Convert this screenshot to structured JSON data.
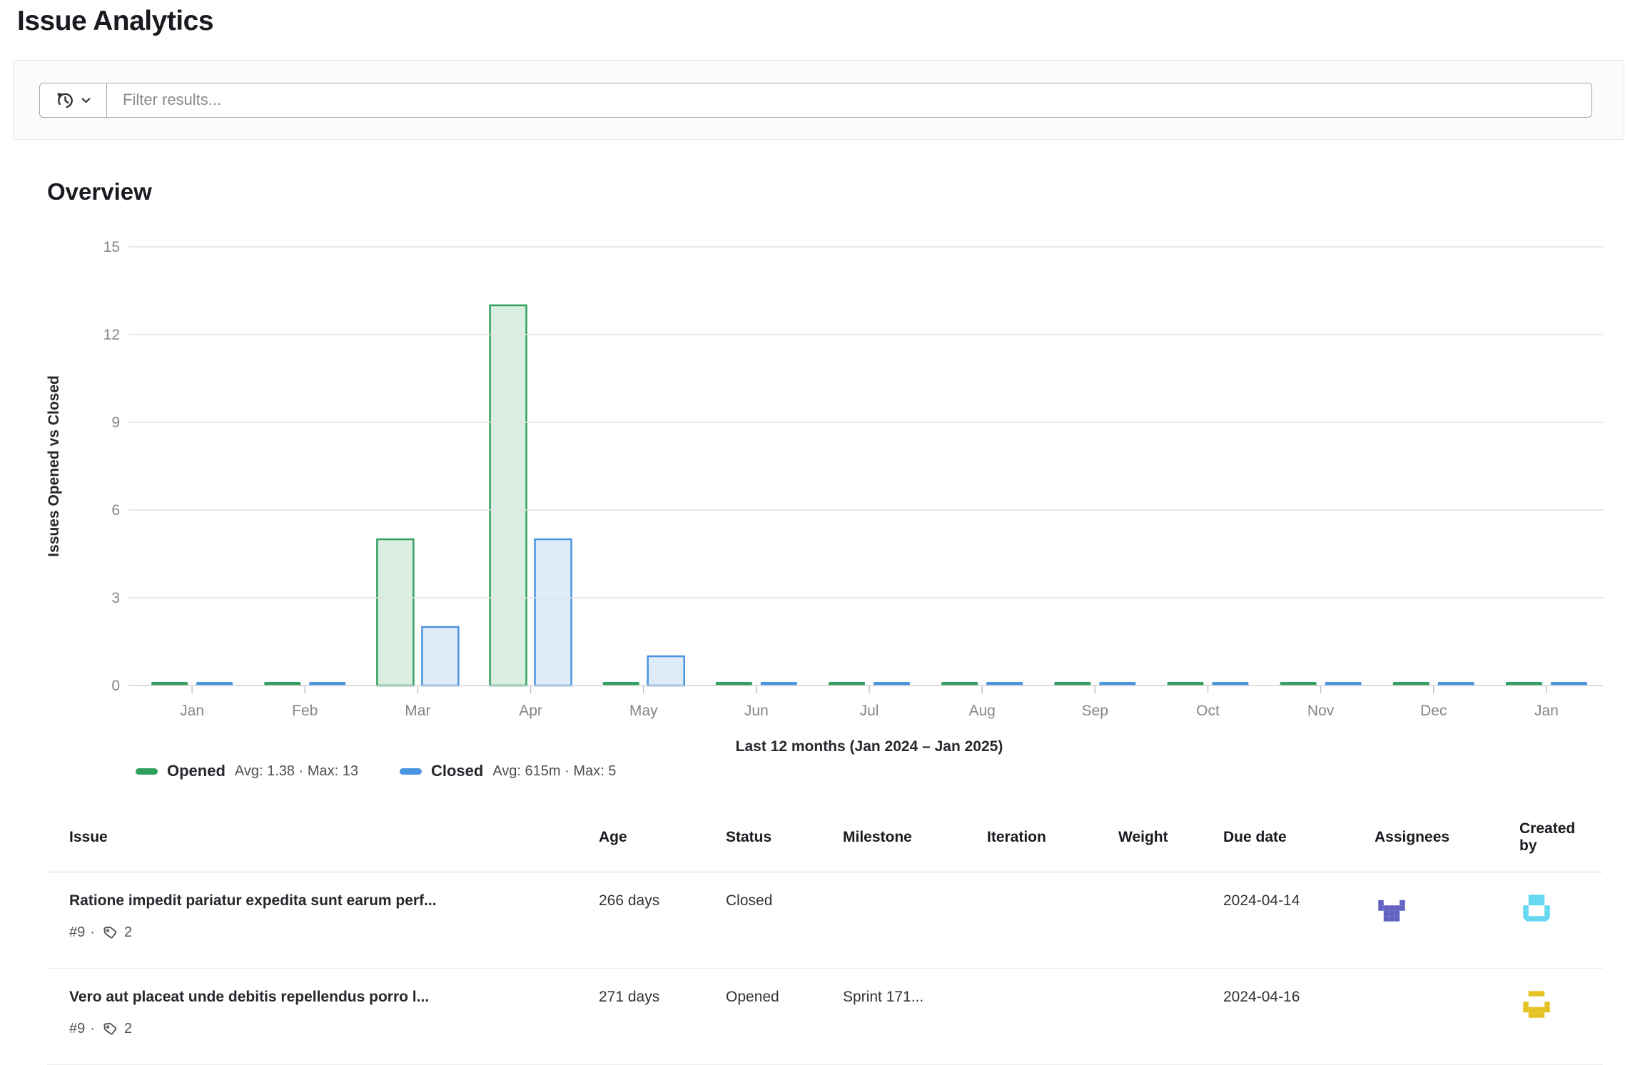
{
  "page": {
    "title": "Issue Analytics"
  },
  "filter": {
    "history_button": "recent-searches-history",
    "placeholder": "Filter results..."
  },
  "overview": {
    "heading": "Overview"
  },
  "chart_data": {
    "type": "bar",
    "title": "Overview",
    "categories": [
      "Jan",
      "Feb",
      "Mar",
      "Apr",
      "May",
      "Jun",
      "Jul",
      "Aug",
      "Sep",
      "Oct",
      "Nov",
      "Dec",
      "Jan"
    ],
    "series": [
      {
        "name": "Opened",
        "values": [
          0,
          0,
          5,
          13,
          0,
          0,
          0,
          0,
          0,
          0,
          0,
          0,
          0
        ],
        "stats": "Avg: 1.38 · Max: 13",
        "color": "#31a05f",
        "fill_opacity": 0.18
      },
      {
        "name": "Closed",
        "values": [
          0,
          0,
          2,
          5,
          1,
          0,
          0,
          0,
          0,
          0,
          0,
          0,
          0
        ],
        "stats": "Avg: 615m · Max: 5",
        "color": "#4a94e0",
        "fill_opacity": 0.18
      }
    ],
    "xlabel": "Last 12 months (Jan 2024 – Jan 2025)",
    "ylabel": "Issues Opened vs Closed",
    "ylim": [
      0,
      15
    ],
    "yticks": [
      0,
      3,
      6,
      9,
      12,
      15
    ],
    "grid": true,
    "legend_position": "bottom-left",
    "colors": {
      "axis_text": "#85848a",
      "gridline": "#e2e2e5",
      "baseline": "#d2d2d6",
      "tick": "#c2c2c6",
      "axis_title": "#28272d"
    }
  },
  "table": {
    "columns": [
      "Issue",
      "Age",
      "Status",
      "Milestone",
      "Iteration",
      "Weight",
      "Due date",
      "Assignees",
      "Created by"
    ],
    "rows": [
      {
        "title": "Ratione impedit pariatur expedita sunt earum perf...",
        "ref": "#9",
        "separator": "·",
        "label_count": "2",
        "age": "266 days",
        "status": "Closed",
        "milestone": "",
        "iteration": "",
        "weight": "",
        "due_date": "2024-04-14",
        "assignees": [
          {
            "icon": "identicon-avatar",
            "color": "#6161c2",
            "seed": "7"
          }
        ],
        "created_by": [
          {
            "icon": "identicon-avatar",
            "color": "#63d7ee",
            "seed": "4"
          }
        ]
      },
      {
        "title": "Vero aut placeat unde debitis repellendus porro l...",
        "ref": "#9",
        "separator": "·",
        "label_count": "2",
        "age": "271 days",
        "status": "Opened",
        "milestone": "Sprint 171...",
        "iteration": "",
        "weight": "",
        "due_date": "2024-04-16",
        "assignees": [],
        "created_by": [
          {
            "icon": "identicon-avatar",
            "color": "#e4c221",
            "seed": "2"
          }
        ]
      }
    ]
  }
}
